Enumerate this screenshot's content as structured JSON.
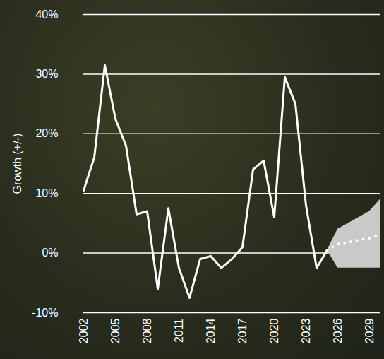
{
  "chart_data": {
    "type": "line",
    "x": [
      2002,
      2003,
      2004,
      2005,
      2006,
      2007,
      2008,
      2009,
      2010,
      2011,
      2012,
      2013,
      2014,
      2015,
      2016,
      2017,
      2018,
      2019,
      2020,
      2021,
      2022,
      2023,
      2024,
      2025,
      2026,
      2027,
      2028,
      2029,
      2030
    ],
    "series": [
      {
        "color": "#ffffff",
        "line_style": "solid",
        "values": [
          10.5,
          16,
          31.5,
          22.5,
          18,
          6.5,
          7,
          -6,
          7.5,
          -2.5,
          -7.5,
          -1,
          -0.5,
          -2.5,
          -1,
          1,
          14,
          15.5,
          6,
          29.5,
          25,
          8,
          -2.5,
          0.5,
          null,
          null,
          null,
          null,
          null
        ]
      },
      {
        "color": "#ffffff",
        "line_style": "dotted",
        "values": [
          null,
          null,
          null,
          null,
          null,
          null,
          null,
          null,
          null,
          null,
          null,
          null,
          null,
          null,
          null,
          null,
          null,
          null,
          null,
          null,
          null,
          null,
          null,
          0.5,
          1.5,
          1.8,
          2.2,
          2.5,
          3
        ],
        "range_lower": [
          null,
          null,
          null,
          null,
          null,
          null,
          null,
          null,
          null,
          null,
          null,
          null,
          null,
          null,
          null,
          null,
          null,
          null,
          null,
          null,
          null,
          null,
          null,
          0.5,
          -2.5,
          -2.5,
          -2.5,
          -2.5,
          -2.5
        ],
        "range_upper": [
          null,
          null,
          null,
          null,
          null,
          null,
          null,
          null,
          null,
          null,
          null,
          null,
          null,
          null,
          null,
          null,
          null,
          null,
          null,
          null,
          null,
          null,
          null,
          0.5,
          4,
          5,
          6,
          7,
          9
        ]
      }
    ],
    "ylabel": "Growth (+/-)",
    "xlim": [
      2002,
      2030
    ],
    "xticks": [
      2002,
      2005,
      2008,
      2011,
      2014,
      2017,
      2020,
      2023,
      2026,
      2029
    ],
    "ylim": [
      -10,
      40
    ],
    "yticks": [
      {
        "value": -10,
        "label": "-10%"
      },
      {
        "value": 0,
        "label": "0%"
      },
      {
        "value": 10,
        "label": "10%"
      },
      {
        "value": 20,
        "label": "20%"
      },
      {
        "value": 30,
        "label": "30%"
      },
      {
        "value": 40,
        "label": "40%"
      }
    ],
    "grid": true
  }
}
